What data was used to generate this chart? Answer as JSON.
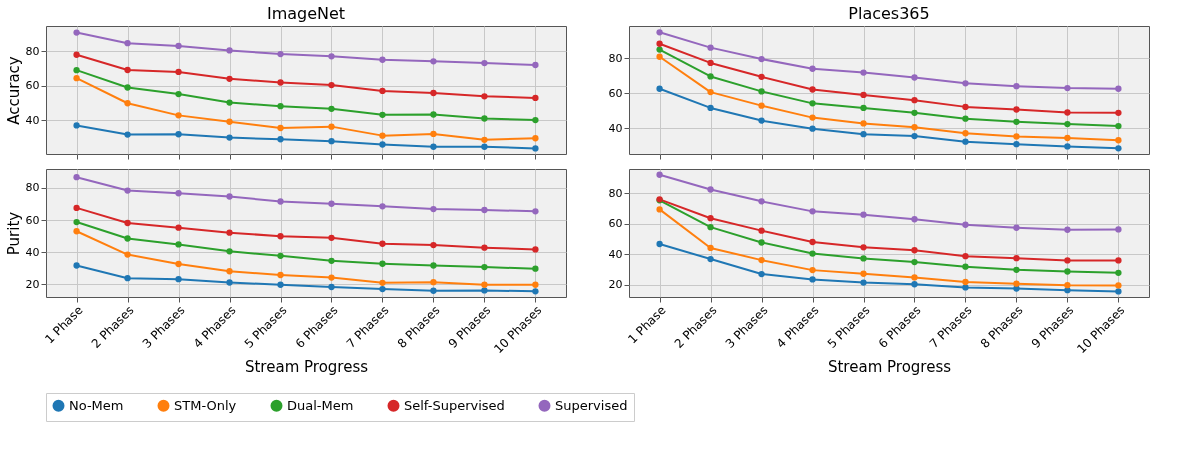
{
  "chart_data": [
    {
      "type": "line",
      "title": "ImageNet",
      "ylabel": "Accuracy",
      "categories": [
        "1 Phase",
        "2 Phases",
        "3 Phases",
        "4 Phases",
        "5 Phases",
        "6 Phases",
        "7 Phases",
        "8 Phases",
        "9 Phases",
        "10 Phases"
      ],
      "ylim": [
        20.6,
        94.5
      ],
      "yticks": [
        40,
        60,
        80
      ],
      "grid": true,
      "marker": "circle",
      "line_style": "solid",
      "legend": "bottom",
      "tick_labels": "y",
      "series": [
        {
          "name": "No-Mem",
          "color": "#1f77b4",
          "values": [
            37.1,
            31.8,
            32.0,
            30.1,
            29.1,
            28.0,
            26.1,
            24.8,
            24.8,
            23.8
          ]
        },
        {
          "name": "STM-Only",
          "color": "#ff7f0e",
          "values": [
            64.4,
            49.9,
            42.9,
            39.2,
            35.6,
            36.4,
            31.2,
            32.2,
            28.8,
            29.7
          ]
        },
        {
          "name": "Dual-Mem",
          "color": "#2ca02c",
          "values": [
            69.0,
            59.0,
            55.2,
            50.3,
            48.2,
            46.7,
            43.2,
            43.4,
            41.1,
            40.2
          ]
        },
        {
          "name": "Self-Supervised",
          "color": "#d62728",
          "values": [
            77.9,
            69.1,
            68.0,
            64.0,
            61.9,
            60.4,
            57.0,
            55.8,
            53.9,
            53.0
          ]
        },
        {
          "name": "Supervised",
          "color": "#9467bd",
          "values": [
            90.7,
            84.6,
            83.0,
            80.4,
            78.3,
            77.0,
            75.0,
            74.1,
            73.1,
            72.0
          ]
        }
      ]
    },
    {
      "type": "line",
      "title": "Places365",
      "categories": [
        "1 Phase",
        "2 Phases",
        "3 Phases",
        "4 Phases",
        "5 Phases",
        "6 Phases",
        "7 Phases",
        "8 Phases",
        "9 Phases",
        "10 Phases"
      ],
      "ylim": [
        25.4,
        98.2
      ],
      "yticks": [
        40,
        60,
        80
      ],
      "grid": true,
      "marker": "circle",
      "line_style": "solid",
      "tick_labels": "y",
      "series": [
        {
          "name": "No-Mem",
          "color": "#1f77b4",
          "values": [
            62.5,
            51.6,
            44.4,
            39.8,
            36.7,
            35.6,
            32.4,
            31.0,
            29.7,
            28.6
          ]
        },
        {
          "name": "STM-Only",
          "color": "#ff7f0e",
          "values": [
            80.7,
            60.6,
            52.9,
            46.1,
            42.8,
            40.6,
            37.2,
            35.4,
            34.5,
            33.2
          ]
        },
        {
          "name": "Dual-Mem",
          "color": "#2ca02c",
          "values": [
            84.8,
            69.5,
            61.0,
            54.2,
            51.6,
            48.8,
            45.5,
            43.7,
            42.4,
            41.3
          ]
        },
        {
          "name": "Self-Supervised",
          "color": "#d62728",
          "values": [
            88.1,
            77.2,
            69.3,
            62.1,
            59.0,
            56.0,
            52.2,
            50.7,
            49.0,
            48.8
          ]
        },
        {
          "name": "Supervised",
          "color": "#9467bd",
          "values": [
            94.6,
            85.9,
            79.4,
            73.9,
            71.7,
            68.9,
            65.6,
            64.0,
            62.9,
            62.5
          ]
        }
      ]
    },
    {
      "type": "line",
      "ylabel": "Purity",
      "xlabel": "Stream Progress",
      "categories": [
        "1 Phase",
        "2 Phases",
        "3 Phases",
        "4 Phases",
        "5 Phases",
        "6 Phases",
        "7 Phases",
        "8 Phases",
        "9 Phases",
        "10 Phases"
      ],
      "ylim": [
        12.2,
        91.8
      ],
      "yticks": [
        20,
        40,
        60,
        80
      ],
      "grid": true,
      "marker": "circle",
      "line_style": "solid",
      "series": [
        {
          "name": "No-Mem",
          "color": "#1f77b4",
          "values": [
            31.8,
            23.9,
            23.3,
            21.2,
            19.8,
            18.4,
            17.1,
            16.1,
            16.3,
            15.7
          ]
        },
        {
          "name": "STM-Only",
          "color": "#ff7f0e",
          "values": [
            53.1,
            38.6,
            32.7,
            28.2,
            25.9,
            24.3,
            21.0,
            21.4,
            19.8,
            19.8
          ]
        },
        {
          "name": "Dual-Mem",
          "color": "#2ca02c",
          "values": [
            58.8,
            48.6,
            44.9,
            40.6,
            37.8,
            34.7,
            32.9,
            31.8,
            30.8,
            29.8
          ]
        },
        {
          "name": "Self-Supervised",
          "color": "#d62728",
          "values": [
            67.6,
            58.2,
            55.3,
            52.2,
            50.0,
            49.0,
            45.3,
            44.5,
            42.9,
            41.8
          ]
        },
        {
          "name": "Supervised",
          "color": "#9467bd",
          "values": [
            86.7,
            78.4,
            76.7,
            74.7,
            71.6,
            70.2,
            68.6,
            66.9,
            66.3,
            65.5
          ]
        }
      ]
    },
    {
      "type": "line",
      "xlabel": "Stream Progress",
      "categories": [
        "1 Phase",
        "2 Phases",
        "3 Phases",
        "4 Phases",
        "5 Phases",
        "6 Phases",
        "7 Phases",
        "8 Phases",
        "9 Phases",
        "10 Phases"
      ],
      "ylim": [
        11.8,
        96.1
      ],
      "yticks": [
        20,
        40,
        60,
        80
      ],
      "grid": true,
      "marker": "circle",
      "line_style": "solid",
      "series": [
        {
          "name": "No-Mem",
          "color": "#1f77b4",
          "values": [
            46.7,
            36.8,
            26.9,
            23.4,
            21.3,
            20.2,
            18.1,
            17.4,
            16.3,
            15.5
          ]
        },
        {
          "name": "STM-Only",
          "color": "#ff7f0e",
          "values": [
            69.5,
            44.1,
            36.1,
            29.5,
            27.1,
            24.7,
            21.7,
            20.6,
            19.6,
            19.4
          ]
        },
        {
          "name": "Dual-Mem",
          "color": "#2ca02c",
          "values": [
            75.5,
            57.8,
            47.7,
            40.4,
            37.2,
            34.8,
            31.8,
            29.7,
            28.6,
            27.7
          ]
        },
        {
          "name": "Self-Supervised",
          "color": "#d62728",
          "values": [
            76.1,
            63.7,
            55.5,
            48.0,
            44.5,
            42.6,
            38.7,
            37.4,
            35.9,
            35.9
          ]
        },
        {
          "name": "Supervised",
          "color": "#9467bd",
          "values": [
            92.3,
            82.6,
            74.8,
            68.2,
            66.0,
            63.0,
            59.4,
            57.4,
            56.1,
            56.3
          ]
        }
      ]
    }
  ]
}
